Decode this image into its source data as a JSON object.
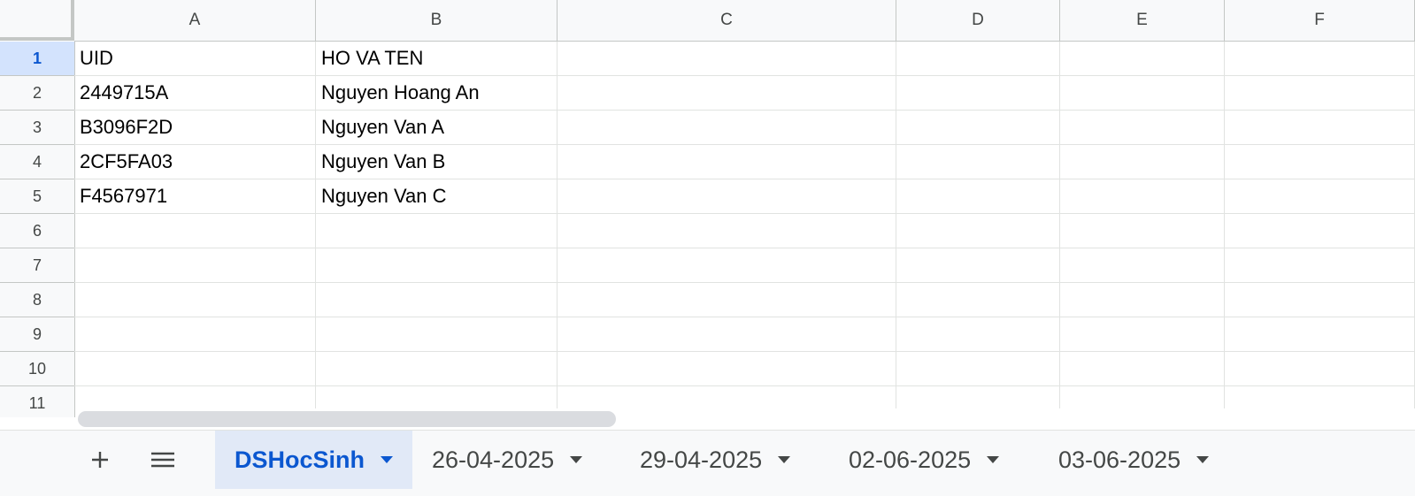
{
  "columns": [
    "A",
    "B",
    "C",
    "D",
    "E",
    "F"
  ],
  "rows": [
    "1",
    "2",
    "3",
    "4",
    "5",
    "6",
    "7",
    "8",
    "9",
    "10",
    "11"
  ],
  "selected_row": "1",
  "cells": [
    [
      "UID",
      "HO VA TEN"
    ],
    [
      "2449715A",
      "Nguyen Hoang An"
    ],
    [
      "B3096F2D",
      "Nguyen Van A"
    ],
    [
      "2CF5FA03",
      "Nguyen Van B"
    ],
    [
      "F4567971",
      "Nguyen Van C"
    ]
  ],
  "tabbar": {
    "add_icon": "plus-icon",
    "all_sheets_icon": "menu-icon",
    "tabs": [
      {
        "label": "DSHocSinh",
        "active": true
      },
      {
        "label": "26-04-2025",
        "active": false
      },
      {
        "label": "29-04-2025",
        "active": false
      },
      {
        "label": "02-06-2025",
        "active": false
      },
      {
        "label": "03-06-2025",
        "active": false
      }
    ]
  },
  "colors": {
    "active_tab_text": "#0b57d0",
    "active_tab_bg": "#e1e9f7",
    "selected_row_header_bg": "#d3e3fd"
  }
}
